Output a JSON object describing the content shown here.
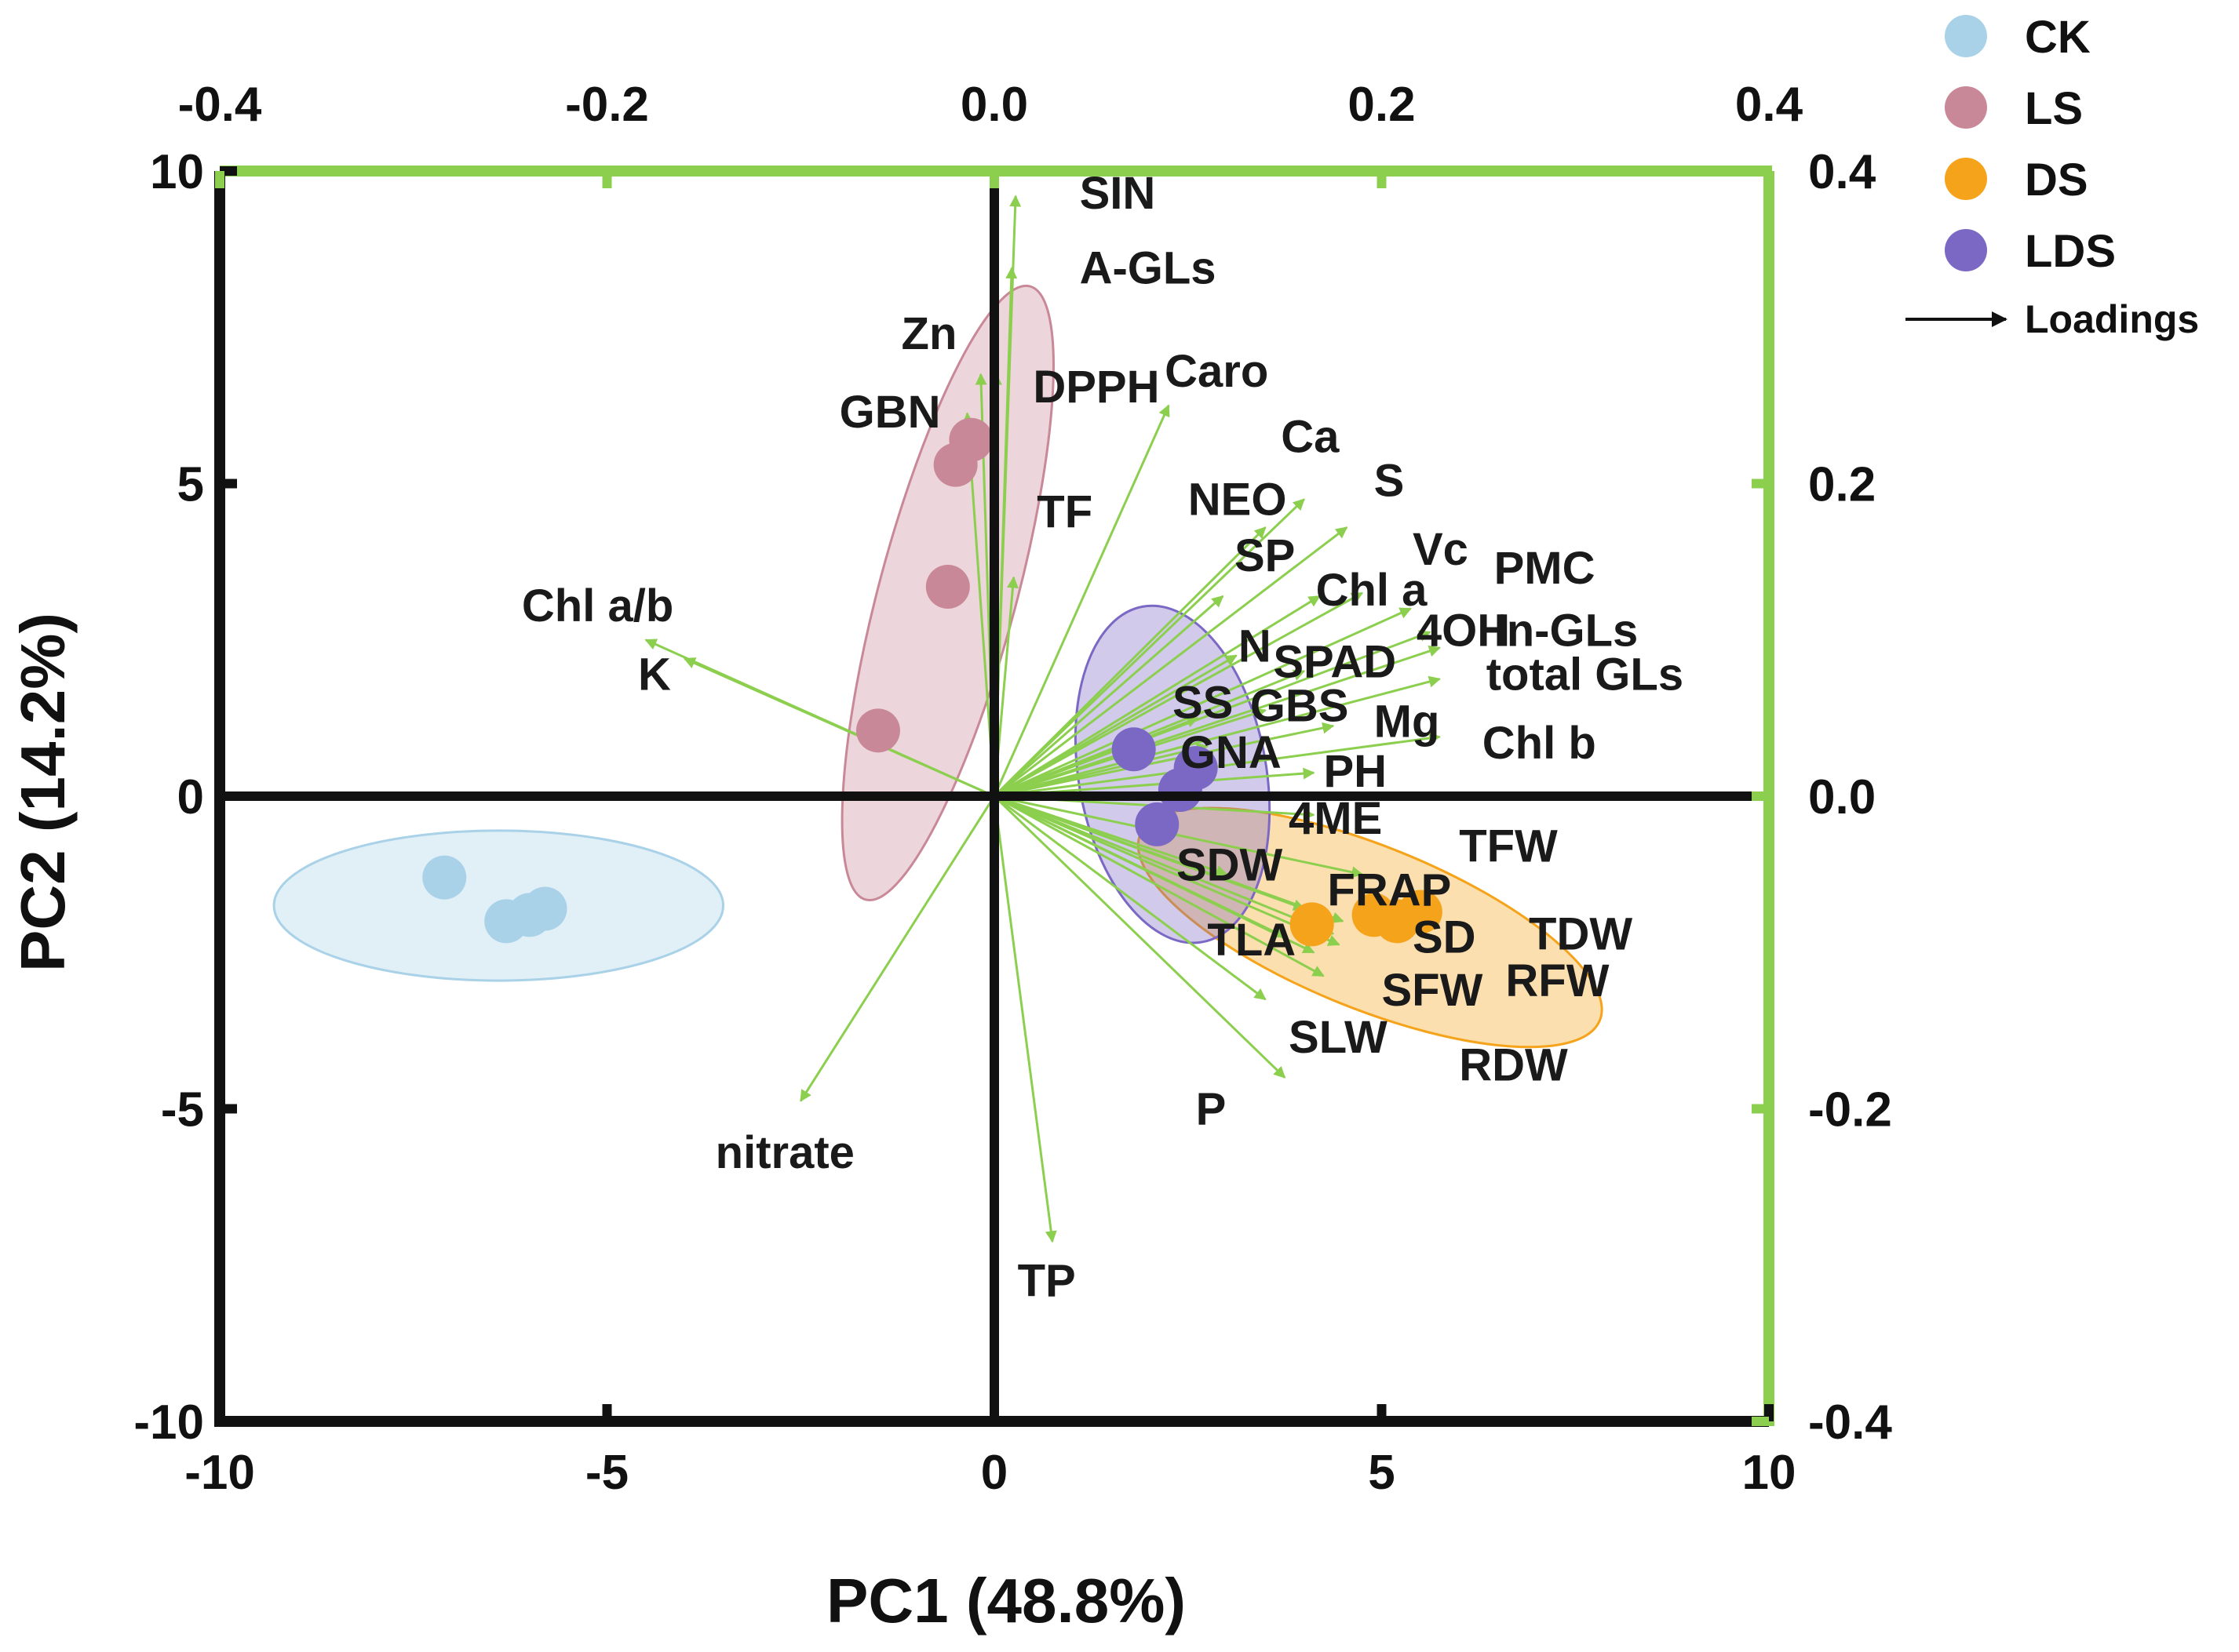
{
  "chart_data": {
    "type": "scatter",
    "subtype": "pca-biplot",
    "xlabel": "PC1 (48.8%)",
    "ylabel": "PC2 (14.2%)",
    "xlim": [
      -10,
      10
    ],
    "ylim": [
      -10,
      10
    ],
    "xticks": [
      -10,
      -5,
      0,
      5,
      10
    ],
    "yticks": [
      -10,
      -5,
      0,
      5,
      10
    ],
    "xtick_labels": [
      "-10",
      "-5",
      "0",
      "5",
      "10"
    ],
    "ytick_labels": [
      "-10",
      "-5",
      "0",
      "5",
      "10"
    ],
    "loading_xlim": [
      -0.4,
      0.4
    ],
    "loading_ylim": [
      -0.4,
      0.4
    ],
    "top_ticks": [
      -0.4,
      -0.2,
      0.0,
      0.2,
      0.4
    ],
    "top_tick_labels": [
      "-0.4",
      "-0.2",
      "0.0",
      "0.2",
      "0.4"
    ],
    "right_ticks": [
      0.4,
      0.2,
      0.0,
      -0.2,
      -0.4
    ],
    "right_tick_labels": [
      "0.4",
      "0.2",
      "0.0",
      "-0.2",
      "-0.4"
    ],
    "colors": {
      "axis": "#111111",
      "secondary_axis": "#8ccf4f",
      "arrow": "#8ccf4f",
      "CK": "#a9d2e8",
      "LS": "#c98897",
      "DS": "#f5a31a",
      "LDS": "#7b68c4"
    },
    "groups": [
      {
        "name": "CK",
        "points": [
          [
            -7.1,
            -1.3
          ],
          [
            -6.3,
            -2.0
          ],
          [
            -5.8,
            -1.8
          ],
          [
            -6.0,
            -1.9
          ]
        ],
        "ellipse": {
          "cx": -6.4,
          "cy": -1.75,
          "rx": 2.9,
          "ry": 1.2,
          "angle": 0
        }
      },
      {
        "name": "LS",
        "points": [
          [
            -1.5,
            1.05
          ],
          [
            -0.6,
            3.35
          ],
          [
            -0.3,
            5.7
          ],
          [
            -0.5,
            5.3
          ]
        ],
        "ellipse": {
          "cx": -0.6,
          "cy": 3.25,
          "rx": 4.1,
          "ry": 1.1,
          "angle": 75
        }
      },
      {
        "name": "DS",
        "points": [
          [
            4.1,
            -2.05
          ],
          [
            4.9,
            -1.9
          ],
          [
            5.5,
            -1.85
          ],
          [
            5.2,
            -2.0
          ]
        ],
        "ellipse": {
          "cx": 4.85,
          "cy": -2.1,
          "rx": 3.2,
          "ry": 1.3,
          "angle": -22
        }
      },
      {
        "name": "LDS",
        "points": [
          [
            1.8,
            0.75
          ],
          [
            2.1,
            -0.45
          ],
          [
            2.6,
            0.45
          ],
          [
            2.4,
            0.1
          ]
        ],
        "ellipse": {
          "cx": 2.3,
          "cy": 0.35,
          "rx": 2.2,
          "ry": 1.5,
          "angle": -80
        }
      }
    ],
    "loadings": [
      {
        "name": "SIN",
        "x": 0.011,
        "y": 0.384
      },
      {
        "name": "A-GLs",
        "x": 0.009,
        "y": 0.338
      },
      {
        "name": "Zn",
        "x": -0.007,
        "y": 0.27
      },
      {
        "name": "DPPH",
        "x": 0.001,
        "y": 0.27
      },
      {
        "name": "Caro",
        "x": 0.09,
        "y": 0.25
      },
      {
        "name": "GBN",
        "x": -0.014,
        "y": 0.245
      },
      {
        "name": "TF",
        "x": 0.01,
        "y": 0.14
      },
      {
        "name": "Chl a/b",
        "x": -0.18,
        "y": 0.1
      },
      {
        "name": "K",
        "x": -0.16,
        "y": 0.088
      },
      {
        "name": "Ca",
        "x": 0.16,
        "y": 0.19
      },
      {
        "name": "S",
        "x": 0.182,
        "y": 0.172
      },
      {
        "name": "NEO",
        "x": 0.14,
        "y": 0.172
      },
      {
        "name": "SP",
        "x": 0.118,
        "y": 0.128
      },
      {
        "name": "Chl a",
        "x": 0.168,
        "y": 0.128
      },
      {
        "name": "Vc",
        "x": 0.19,
        "y": 0.13
      },
      {
        "name": "PMC",
        "x": 0.215,
        "y": 0.12
      },
      {
        "name": "4OH",
        "x": 0.225,
        "y": 0.105
      },
      {
        "name": "In-GLs",
        "x": 0.23,
        "y": 0.095
      },
      {
        "name": "N",
        "x": 0.125,
        "y": 0.09
      },
      {
        "name": "SPAD",
        "x": 0.16,
        "y": 0.08
      },
      {
        "name": "total GLs",
        "x": 0.23,
        "y": 0.075
      },
      {
        "name": "SS",
        "x": 0.105,
        "y": 0.05
      },
      {
        "name": "GBS",
        "x": 0.14,
        "y": 0.055
      },
      {
        "name": "Mg",
        "x": 0.175,
        "y": 0.045
      },
      {
        "name": "Chl b",
        "x": 0.23,
        "y": 0.038
      },
      {
        "name": "GNA",
        "x": 0.11,
        "y": 0.032
      },
      {
        "name": "PH",
        "x": 0.165,
        "y": 0.015
      },
      {
        "name": "4ME",
        "x": 0.165,
        "y": -0.012
      },
      {
        "name": "TFW",
        "x": 0.19,
        "y": -0.05
      },
      {
        "name": "SDW",
        "x": 0.12,
        "y": -0.05
      },
      {
        "name": "FRAP",
        "x": 0.16,
        "y": -0.072
      },
      {
        "name": "SD",
        "x": 0.175,
        "y": -0.088
      },
      {
        "name": "TDW",
        "x": 0.18,
        "y": -0.08
      },
      {
        "name": "TLA",
        "x": 0.15,
        "y": -0.09
      },
      {
        "name": "RFW",
        "x": 0.178,
        "y": -0.095
      },
      {
        "name": "SFW",
        "x": 0.165,
        "y": -0.1
      },
      {
        "name": "SLW",
        "x": 0.14,
        "y": -0.13
      },
      {
        "name": "RDW",
        "x": 0.17,
        "y": -0.115
      },
      {
        "name": "P",
        "x": 0.15,
        "y": -0.18
      },
      {
        "name": "nitrate",
        "x": -0.1,
        "y": -0.195
      },
      {
        "name": "TP",
        "x": 0.03,
        "y": -0.285
      }
    ],
    "labels": [
      {
        "text": "SIN",
        "x": 1.1,
        "y": 9.4
      },
      {
        "text": "A-GLs",
        "x": 1.1,
        "y": 8.2
      },
      {
        "text": "Zn",
        "x": -1.2,
        "y": 7.15
      },
      {
        "text": "DPPH",
        "x": 0.5,
        "y": 6.3
      },
      {
        "text": "Caro",
        "x": 2.2,
        "y": 6.55
      },
      {
        "text": "GBN",
        "x": -2.0,
        "y": 5.9
      },
      {
        "text": "TF",
        "x": 0.55,
        "y": 4.3
      },
      {
        "text": "Chl a/b",
        "x": -6.1,
        "y": 2.8
      },
      {
        "text": "K",
        "x": -4.6,
        "y": 1.7
      },
      {
        "text": "Ca",
        "x": 3.7,
        "y": 5.5
      },
      {
        "text": "S",
        "x": 4.9,
        "y": 4.8
      },
      {
        "text": "NEO",
        "x": 2.5,
        "y": 4.5
      },
      {
        "text": "SP",
        "x": 3.1,
        "y": 3.6
      },
      {
        "text": "Chl a",
        "x": 4.15,
        "y": 3.05
      },
      {
        "text": "Vc",
        "x": 5.4,
        "y": 3.7
      },
      {
        "text": "PMC",
        "x": 6.45,
        "y": 3.4
      },
      {
        "text": "4OH",
        "x": 5.45,
        "y": 2.4
      },
      {
        "text": "In-GLs",
        "x": 6.45,
        "y": 2.4
      },
      {
        "text": "N",
        "x": 3.15,
        "y": 2.15
      },
      {
        "text": "SPAD",
        "x": 3.6,
        "y": 1.9
      },
      {
        "text": "total GLs",
        "x": 6.35,
        "y": 1.7
      },
      {
        "text": "SS",
        "x": 2.3,
        "y": 1.25
      },
      {
        "text": "GBS",
        "x": 3.3,
        "y": 1.2
      },
      {
        "text": "Mg",
        "x": 4.9,
        "y": 0.95
      },
      {
        "text": "Chl b",
        "x": 6.3,
        "y": 0.6
      },
      {
        "text": "GNA",
        "x": 2.4,
        "y": 0.45
      },
      {
        "text": "PH",
        "x": 4.25,
        "y": 0.15
      },
      {
        "text": "4ME",
        "x": 3.8,
        "y": -0.6
      },
      {
        "text": "TFW",
        "x": 6.0,
        "y": -1.05
      },
      {
        "text": "SDW",
        "x": 2.35,
        "y": -1.35
      },
      {
        "text": "FRAP",
        "x": 4.3,
        "y": -1.75
      },
      {
        "text": "SD",
        "x": 5.4,
        "y": -2.5
      },
      {
        "text": "TDW",
        "x": 6.9,
        "y": -2.45
      },
      {
        "text": "TLA",
        "x": 2.75,
        "y": -2.55
      },
      {
        "text": "RFW",
        "x": 6.6,
        "y": -3.2
      },
      {
        "text": "SFW",
        "x": 5.0,
        "y": -3.35
      },
      {
        "text": "SLW",
        "x": 3.8,
        "y": -4.1
      },
      {
        "text": "RDW",
        "x": 6.0,
        "y": -4.55
      },
      {
        "text": "P",
        "x": 2.6,
        "y": -5.25
      },
      {
        "text": "nitrate",
        "x": -3.6,
        "y": -5.95
      },
      {
        "text": "TP",
        "x": 0.3,
        "y": -8.0
      }
    ],
    "legend": {
      "position": "top-right",
      "entries": [
        {
          "name": "CK",
          "color": "#a9d2e8"
        },
        {
          "name": "LS",
          "color": "#c98897"
        },
        {
          "name": "DS",
          "color": "#f5a31a"
        },
        {
          "name": "LDS",
          "color": "#7b68c4"
        }
      ],
      "loadings_label": "Loadings"
    }
  }
}
